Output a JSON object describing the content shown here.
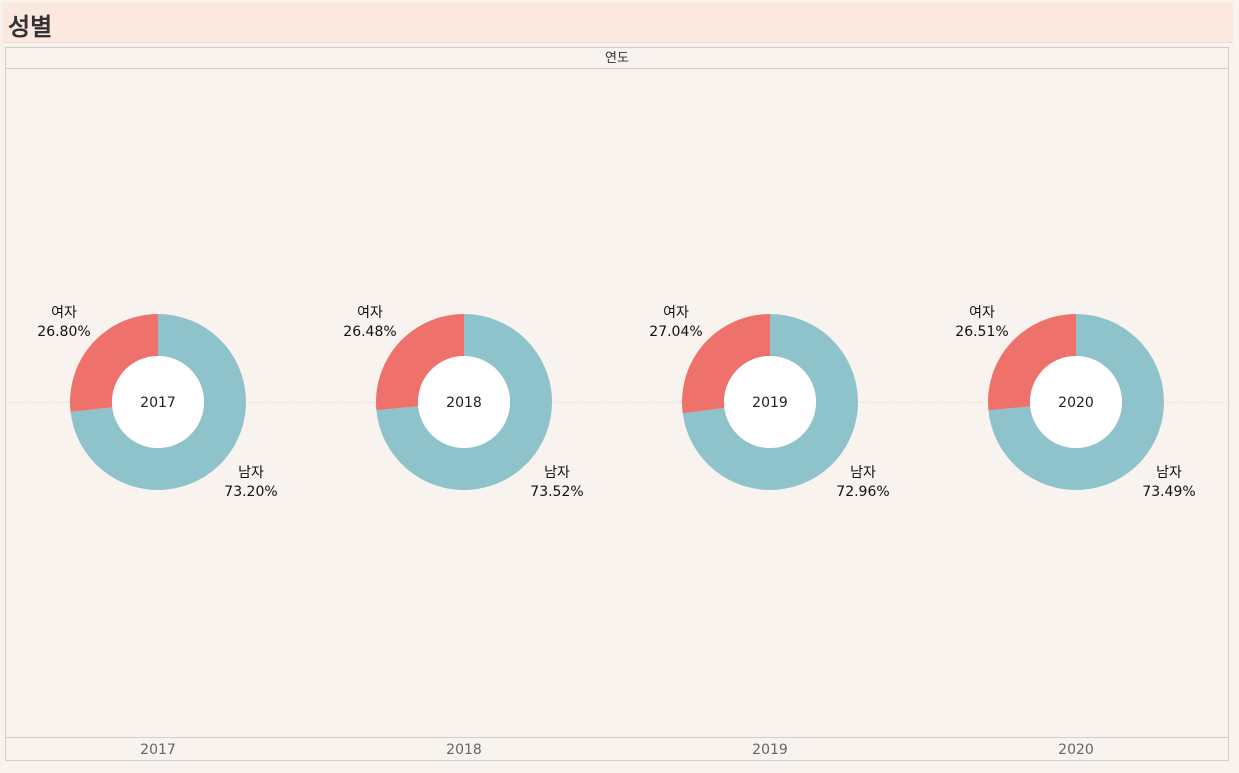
{
  "title": "성별",
  "colors": {
    "male": "#8ec3cb",
    "female": "#ef716b",
    "hole": "#ffffff"
  },
  "chart_data": {
    "type": "pie",
    "donut": true,
    "xlabel": "연도",
    "categories": [
      "2017",
      "2018",
      "2019",
      "2020"
    ],
    "series": [
      {
        "name": "여자",
        "values": [
          26.8,
          26.48,
          27.04,
          26.51
        ]
      },
      {
        "name": "남자",
        "values": [
          73.2,
          73.52,
          72.96,
          73.49
        ]
      }
    ],
    "value_labels": {
      "여자": [
        "26.80%",
        "26.48%",
        "27.04%",
        "26.51%"
      ],
      "남자": [
        "73.20%",
        "73.52%",
        "72.96%",
        "73.49%"
      ]
    },
    "center_labels": [
      "2017",
      "2018",
      "2019",
      "2020"
    ],
    "tick_labels": [
      "2017",
      "2018",
      "2019",
      "2020"
    ]
  }
}
